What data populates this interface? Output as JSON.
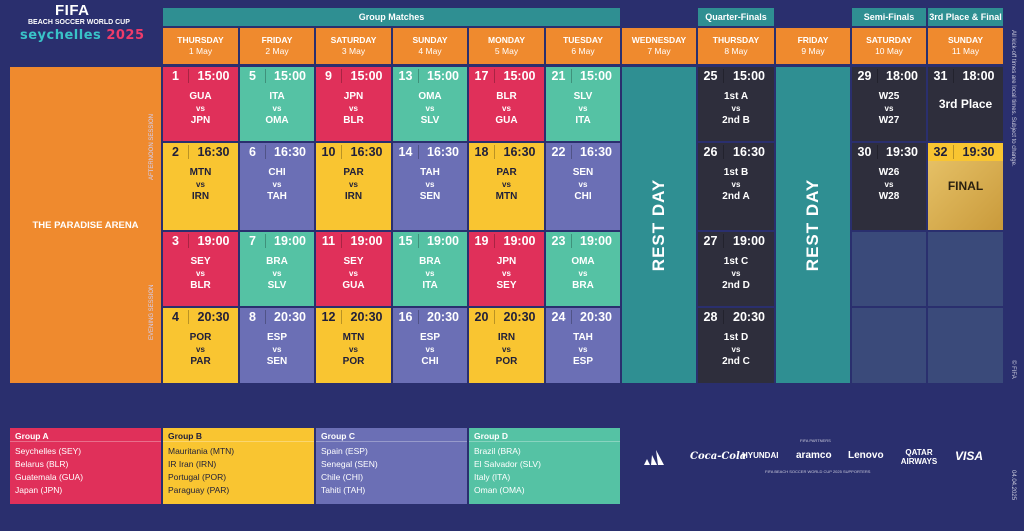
{
  "logo": {
    "fifa": "FIFA",
    "sub": "BEACH SOCCER WORLD CUP",
    "sey_a": "seychelles ",
    "sey_b": "2025"
  },
  "headers": {
    "group": "Group Matches",
    "qf": "Quarter-Finals",
    "sf": "Semi-Finals",
    "final": "3rd Place & Final"
  },
  "days": [
    {
      "d": "THURSDAY",
      "m": "1 May"
    },
    {
      "d": "FRIDAY",
      "m": "2 May"
    },
    {
      "d": "SATURDAY",
      "m": "3 May"
    },
    {
      "d": "SUNDAY",
      "m": "4 May"
    },
    {
      "d": "MONDAY",
      "m": "5 May"
    },
    {
      "d": "TUESDAY",
      "m": "6 May"
    },
    {
      "d": "WEDNESDAY",
      "m": "7 May"
    },
    {
      "d": "THURSDAY",
      "m": "8 May"
    },
    {
      "d": "FRIDAY",
      "m": "9 May"
    },
    {
      "d": "SATURDAY",
      "m": "10 May"
    },
    {
      "d": "SUNDAY",
      "m": "11 May"
    }
  ],
  "arena": "THE PARADISE ARENA",
  "sessions": {
    "afternoon": "AFTERNOON SESSION",
    "evening": "EVENING SESSION"
  },
  "rest": "REST DAY",
  "matches": [
    {
      "n": "1",
      "t": "15:00",
      "a": "GUA",
      "v": "vs",
      "b": "JPN"
    },
    {
      "n": "5",
      "t": "15:00",
      "a": "ITA",
      "v": "vs",
      "b": "OMA"
    },
    {
      "n": "9",
      "t": "15:00",
      "a": "JPN",
      "v": "vs",
      "b": "BLR"
    },
    {
      "n": "13",
      "t": "15:00",
      "a": "OMA",
      "v": "vs",
      "b": "SLV"
    },
    {
      "n": "17",
      "t": "15:00",
      "a": "BLR",
      "v": "vs",
      "b": "GUA"
    },
    {
      "n": "21",
      "t": "15:00",
      "a": "SLV",
      "v": "vs",
      "b": "ITA"
    },
    {
      "n": "2",
      "t": "16:30",
      "a": "MTN",
      "v": "vs",
      "b": "IRN"
    },
    {
      "n": "6",
      "t": "16:30",
      "a": "CHI",
      "v": "vs",
      "b": "TAH"
    },
    {
      "n": "10",
      "t": "16:30",
      "a": "PAR",
      "v": "vs",
      "b": "IRN"
    },
    {
      "n": "14",
      "t": "16:30",
      "a": "TAH",
      "v": "vs",
      "b": "SEN"
    },
    {
      "n": "18",
      "t": "16:30",
      "a": "PAR",
      "v": "vs",
      "b": "MTN"
    },
    {
      "n": "22",
      "t": "16:30",
      "a": "SEN",
      "v": "vs",
      "b": "CHI"
    },
    {
      "n": "3",
      "t": "19:00",
      "a": "SEY",
      "v": "vs",
      "b": "BLR"
    },
    {
      "n": "7",
      "t": "19:00",
      "a": "BRA",
      "v": "vs",
      "b": "SLV"
    },
    {
      "n": "11",
      "t": "19:00",
      "a": "SEY",
      "v": "vs",
      "b": "GUA"
    },
    {
      "n": "15",
      "t": "19:00",
      "a": "BRA",
      "v": "vs",
      "b": "ITA"
    },
    {
      "n": "19",
      "t": "19:00",
      "a": "JPN",
      "v": "vs",
      "b": "SEY"
    },
    {
      "n": "23",
      "t": "19:00",
      "a": "OMA",
      "v": "vs",
      "b": "BRA"
    },
    {
      "n": "4",
      "t": "20:30",
      "a": "POR",
      "v": "vs",
      "b": "PAR"
    },
    {
      "n": "8",
      "t": "20:30",
      "a": "ESP",
      "v": "vs",
      "b": "SEN"
    },
    {
      "n": "12",
      "t": "20:30",
      "a": "MTN",
      "v": "vs",
      "b": "POR"
    },
    {
      "n": "16",
      "t": "20:30",
      "a": "ESP",
      "v": "vs",
      "b": "CHI"
    },
    {
      "n": "20",
      "t": "20:30",
      "a": "IRN",
      "v": "vs",
      "b": "POR"
    },
    {
      "n": "24",
      "t": "20:30",
      "a": "TAH",
      "v": "vs",
      "b": "ESP"
    }
  ],
  "qf": [
    {
      "n": "25",
      "t": "15:00",
      "a": "1st A",
      "v": "vs",
      "b": "2nd B"
    },
    {
      "n": "26",
      "t": "16:30",
      "a": "1st B",
      "v": "vs",
      "b": "2nd A"
    },
    {
      "n": "27",
      "t": "19:00",
      "a": "1st C",
      "v": "vs",
      "b": "2nd D"
    },
    {
      "n": "28",
      "t": "20:30",
      "a": "1st D",
      "v": "vs",
      "b": "2nd C"
    }
  ],
  "sf": [
    {
      "n": "29",
      "t": "18:00",
      "a": "W25",
      "v": "vs",
      "b": "W27"
    },
    {
      "n": "30",
      "t": "19:30",
      "a": "W26",
      "v": "vs",
      "b": "W28"
    }
  ],
  "fin": [
    {
      "n": "31",
      "t": "18:00",
      "label": "3rd Place"
    },
    {
      "n": "32",
      "t": "19:30",
      "label": "FINAL"
    }
  ],
  "groups": [
    {
      "title": "Group A",
      "teams": [
        "Seychelles (SEY)",
        "Belarus (BLR)",
        "Guatemala (GUA)",
        "Japan (JPN)"
      ]
    },
    {
      "title": "Group B",
      "teams": [
        "Mauritania (MTN)",
        "IR Iran (IRN)",
        "Portugal (POR)",
        "Paraguay (PAR)"
      ]
    },
    {
      "title": "Group C",
      "teams": [
        "Spain (ESP)",
        "Senegal (SEN)",
        "Chile (CHI)",
        "Tahiti (TAH)"
      ]
    },
    {
      "title": "Group D",
      "teams": [
        "Brazil (BRA)",
        "El Salvador (SLV)",
        "Italy (ITA)",
        "Oman (OMA)"
      ]
    }
  ],
  "sponsors": [
    "Coca-Cola",
    "HYUNDAI",
    "aramco",
    "Lenovo",
    "QATAR AIRWAYS",
    "VISA"
  ],
  "sponsor_labels": {
    "partners": "FIFA PARTNERS",
    "supporters": "FIFA BEACH SOCCER WORLD CUP 2025 SUPPORTERS"
  },
  "note": "All kick-off times are local times. Subject to change.",
  "copyright": "© FIFA",
  "date": "04.04.2025",
  "colors": {
    "bg": "#2a2f6e",
    "orange": "#ef8a2e",
    "teal": "#2f8f92",
    "red": "#e0305a",
    "green": "#55c2a4",
    "yellow": "#f9c531",
    "purple": "#6b6fb5"
  }
}
